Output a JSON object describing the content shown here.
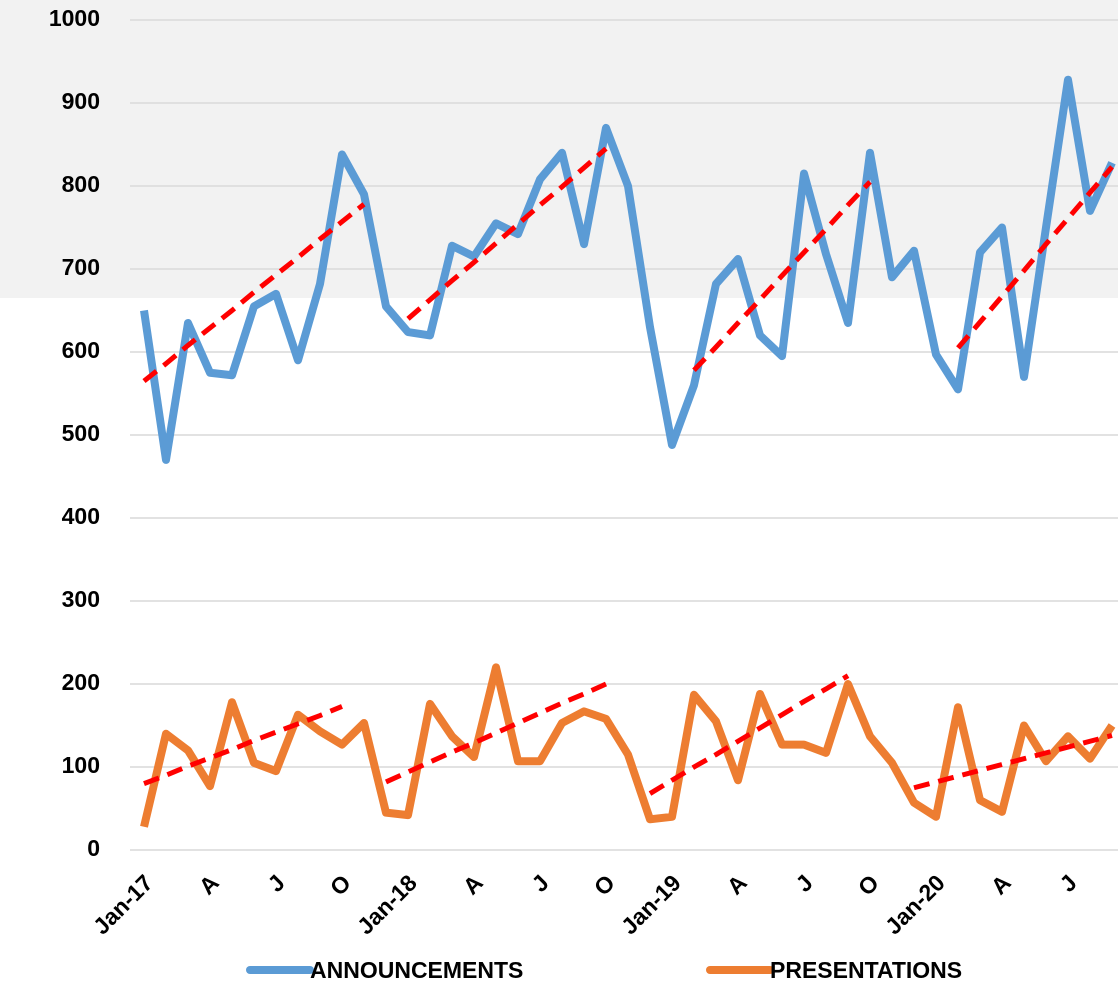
{
  "chart_data": {
    "type": "line",
    "categories": [
      "Jan-17",
      null,
      null,
      "A",
      null,
      null,
      "J",
      null,
      null,
      "O",
      null,
      null,
      "Jan-18",
      null,
      null,
      "A",
      null,
      null,
      "J",
      null,
      null,
      "O",
      null,
      null,
      "Jan-19",
      null,
      null,
      "A",
      null,
      null,
      "J",
      null,
      null,
      "O",
      null,
      null,
      "Jan-20",
      null,
      null,
      "A",
      null,
      null,
      "J",
      null,
      null
    ],
    "series": [
      {
        "name": "ANNOUNCEMENTS",
        "color": "#5b9bd5",
        "values": [
          650,
          470,
          635,
          575,
          572,
          655,
          670,
          590,
          682,
          838,
          790,
          655,
          624,
          620,
          728,
          715,
          755,
          742,
          808,
          840,
          730,
          870,
          800,
          630,
          488,
          560,
          682,
          712,
          620,
          595,
          815,
          718,
          635,
          840,
          690,
          722,
          597,
          555,
          720,
          750,
          570,
          750,
          928,
          770,
          828
        ]
      },
      {
        "name": "PRESENTATIONS",
        "color": "#ed7d31",
        "values": [
          28,
          140,
          120,
          77,
          178,
          105,
          95,
          163,
          143,
          127,
          153,
          45,
          42,
          176,
          137,
          112,
          220,
          107,
          107,
          153,
          167,
          158,
          115,
          37,
          40,
          187,
          155,
          84,
          188,
          127,
          127,
          117,
          200,
          137,
          105,
          57,
          40,
          172,
          60,
          46,
          150,
          107,
          137,
          110,
          150
        ]
      },
      {
        "color": "#ff0000",
        "dashed": true,
        "values": [
          565,
          586,
          608,
          629,
          650,
          672,
          693,
          714,
          736,
          757,
          778,
          null,
          640,
          663,
          686,
          708,
          731,
          754,
          777,
          799,
          822,
          845,
          null,
          null,
          null,
          578,
          606,
          635,
          663,
          692,
          720,
          748,
          777,
          805,
          null,
          null,
          null,
          605,
          636,
          667,
          698,
          730,
          761,
          792,
          823
        ]
      },
      {
        "color": "#ff0000",
        "dashed": true,
        "values": [
          80,
          90,
          101,
          111,
          121,
          132,
          142,
          152,
          162,
          173,
          null,
          82,
          94,
          106,
          118,
          129,
          141,
          153,
          165,
          177,
          188,
          200,
          null,
          68,
          84,
          100,
          115,
          131,
          147,
          163,
          179,
          194,
          210,
          null,
          null,
          75,
          82,
          89,
          96,
          103,
          110,
          117,
          124,
          131,
          138
        ]
      }
    ],
    "ylim": [
      0,
      1000
    ],
    "yticks": [
      0,
      100,
      200,
      300,
      400,
      500,
      600,
      700,
      800,
      900,
      1000
    ],
    "grid": true,
    "legend": "bottom"
  }
}
